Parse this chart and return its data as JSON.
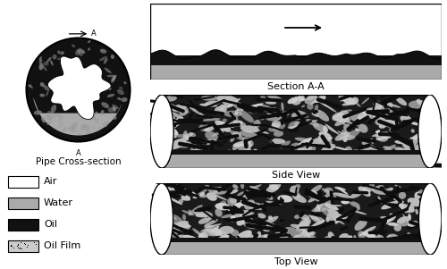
{
  "bg_color": "#ffffff",
  "oil_color": "#111111",
  "water_color": "#aaaaaa",
  "air_color": "#ffffff",
  "section_label": "Section A-A",
  "side_label": "Side View",
  "top_label": "Top View",
  "cross_label": "Pipe Cross-section",
  "legend_items": [
    "Air",
    "Water",
    "Oil",
    "Oil Film"
  ],
  "legend_colors": [
    "#ffffff",
    "#aaaaaa",
    "#111111",
    "#cccccc"
  ],
  "fig_w": 5.0,
  "fig_h": 3.01,
  "dpi": 100
}
